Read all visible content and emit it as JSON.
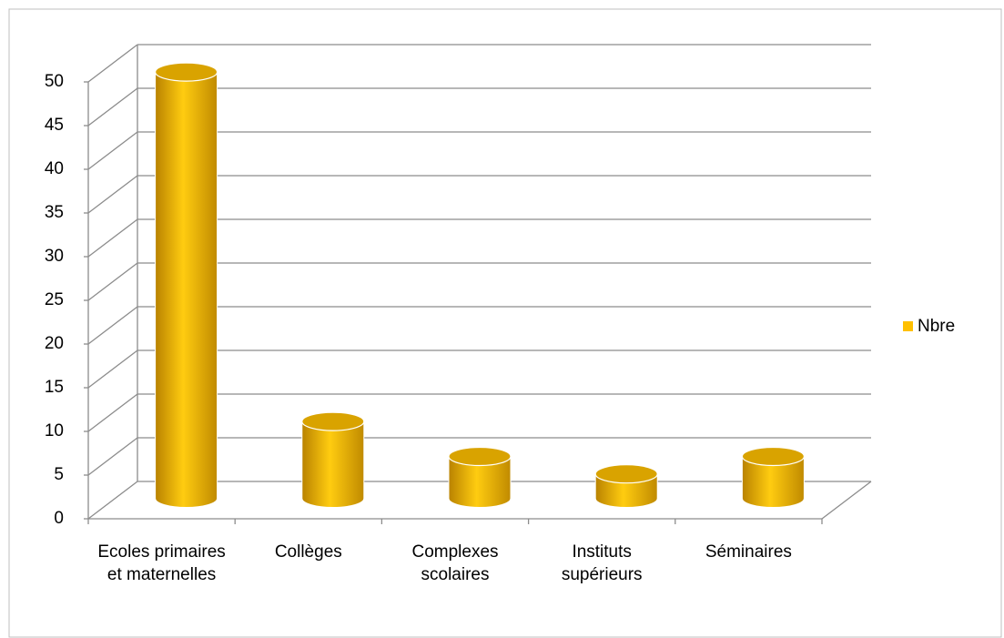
{
  "chart_data": {
    "type": "bar3d",
    "categories": [
      "Ecoles primaires et maternelles",
      "Collèges",
      "Complexes scolaires",
      "Instituts supérieurs",
      "Séminaires"
    ],
    "series": [
      {
        "name": "Nbre",
        "color": "#ffc000",
        "values": [
          49,
          9,
          5,
          3,
          5
        ]
      }
    ],
    "ylim": [
      0,
      50
    ],
    "yticks": [
      0,
      5,
      10,
      15,
      20,
      25,
      30,
      35,
      40,
      45,
      50
    ],
    "grid": true,
    "legend": "right"
  }
}
